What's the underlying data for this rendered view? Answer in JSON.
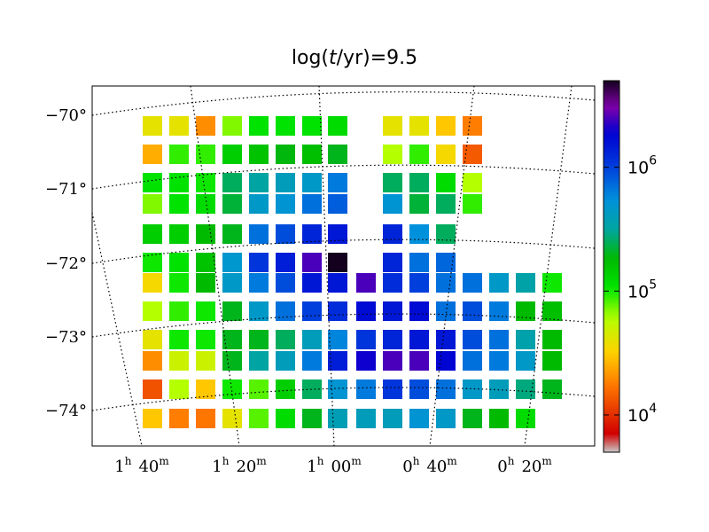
{
  "chart_data": {
    "type": "heatmap",
    "title": "log(t/yr)=9.5",
    "title_parts": {
      "prefix": "log(",
      "italic": "t",
      "suffix": "/yr)=9.5"
    },
    "y_ticks": [
      "−70°",
      "−71°",
      "−72°",
      "−73°",
      "−74°"
    ],
    "x_ticks": [
      {
        "h": "1",
        "m": "40"
      },
      {
        "h": "1",
        "m": "20"
      },
      {
        "h": "1",
        "m": "00"
      },
      {
        "h": "0",
        "m": "40"
      },
      {
        "h": "0",
        "m": "20"
      }
    ],
    "colorbar": {
      "scale": "log",
      "range": [
        5000,
        5000000
      ],
      "tick_labels": [
        {
          "base": "10",
          "exp": "4",
          "value": 10000
        },
        {
          "base": "10",
          "exp": "5",
          "value": 100000
        },
        {
          "base": "10",
          "exp": "6",
          "value": 1000000
        }
      ],
      "colormap": "nipy_spectral"
    },
    "grid": true,
    "rows": [
      [
        40000,
        40000,
        20000,
        70000,
        110000,
        110000,
        110000,
        120000,
        null,
        40000,
        40000,
        30000,
        18000
      ],
      [
        25000,
        90000,
        90000,
        140000,
        160000,
        190000,
        170000,
        200000,
        null,
        60000,
        90000,
        35000,
        14000
      ],
      [
        110000,
        110000,
        100000,
        250000,
        320000,
        400000,
        450000,
        650000,
        null,
        250000,
        250000,
        120000,
        60000
      ],
      [
        70000,
        110000,
        120000,
        220000,
        450000,
        500000,
        700000,
        800000,
        null,
        500000,
        220000,
        250000,
        90000
      ],
      [
        140000,
        140000,
        180000,
        200000,
        700000,
        900000,
        1300000,
        1500000,
        null,
        1300000,
        550000,
        250000
      ],
      [
        100000,
        110000,
        160000,
        480000,
        1100000,
        1400000,
        2500000,
        5000000,
        null,
        1300000,
        700000,
        750000
      ],
      [
        35000,
        100000,
        180000,
        450000,
        650000,
        900000,
        1500000,
        1500000,
        2500000,
        1200000,
        1000000,
        700000,
        700000,
        450000,
        340000,
        100000
      ],
      [
        60000,
        90000,
        100000,
        200000,
        450000,
        700000,
        1000000,
        1200000,
        1700000,
        1500000,
        1700000,
        700000,
        900000,
        650000,
        180000,
        170000
      ],
      [
        40000,
        100000,
        100000,
        200000,
        200000,
        250000,
        400000,
        600000,
        1100000,
        1300000,
        1500000,
        1500000,
        900000,
        700000,
        350000,
        180000
      ],
      [
        20000,
        50000,
        50000,
        200000,
        320000,
        400000,
        650000,
        1400000,
        2000000,
        2500000,
        2500000,
        1800000,
        700000,
        650000,
        450000,
        180000
      ],
      [
        13000,
        60000,
        30000,
        100000,
        80000,
        140000,
        250000,
        500000,
        650000,
        1100000,
        900000,
        700000,
        450000,
        400000,
        280000,
        200000
      ],
      [
        30000,
        18000,
        17000,
        40000,
        80000,
        120000,
        200000,
        380000,
        400000,
        400000,
        500000,
        450000,
        200000,
        180000,
        120000
      ]
    ]
  }
}
